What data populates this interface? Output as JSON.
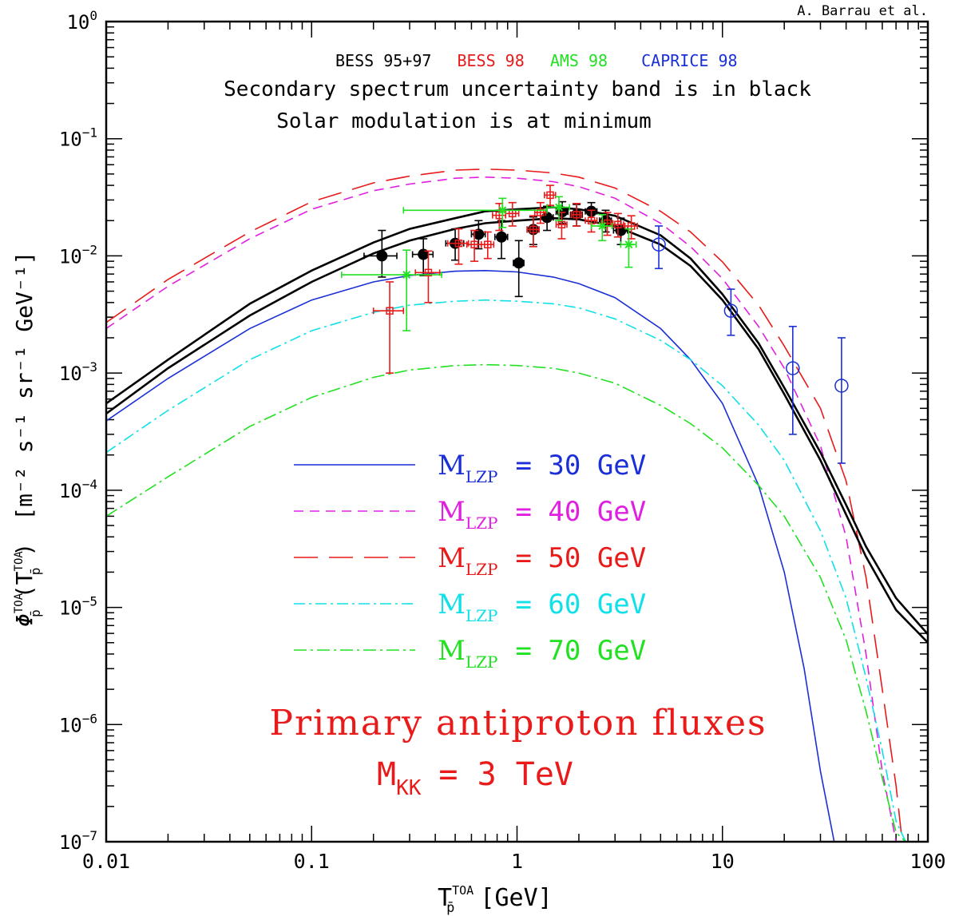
{
  "credit": "A. Barrau et al.",
  "colors": {
    "black": "#000000",
    "blue": "#1a2fd6",
    "magenta": "#e020e0",
    "red": "#e81a1a",
    "cyan": "#10e0e8",
    "green": "#22e022"
  },
  "chart_data": {
    "type": "line",
    "x_scale": "log",
    "y_scale": "log",
    "xlim": [
      0.01,
      100
    ],
    "ylim": [
      1e-07,
      1
    ],
    "x_ticks": [
      {
        "v": 0.01,
        "label": "0.01"
      },
      {
        "v": 0.1,
        "label": "0.1"
      },
      {
        "v": 1,
        "label": "1"
      },
      {
        "v": 10,
        "label": "10"
      },
      {
        "v": 100,
        "label": "100"
      }
    ],
    "y_ticks": [
      {
        "v": 1,
        "base": "10",
        "exp": "0"
      },
      {
        "v": 0.1,
        "base": "10",
        "exp": "−1"
      },
      {
        "v": 0.01,
        "base": "10",
        "exp": "−2"
      },
      {
        "v": 0.001,
        "base": "10",
        "exp": "−3"
      },
      {
        "v": 0.0001,
        "base": "10",
        "exp": "−4"
      },
      {
        "v": 1e-05,
        "base": "10",
        "exp": "−5"
      },
      {
        "v": 1e-06,
        "base": "10",
        "exp": "−6"
      },
      {
        "v": 1e-07,
        "base": "10",
        "exp": "−7"
      }
    ],
    "xlabel": {
      "main": "T",
      "sup": "TOA",
      "sub": "p̄",
      "unit": "[GeV]"
    },
    "ylabel": {
      "phi": "Φ",
      "sup": "TOA",
      "sub": "p̄",
      "arg": "(T",
      "argsup": "TOA",
      "argsub": "p̄",
      "close": ")",
      "unit": "[m⁻² s⁻¹ sr⁻¹ GeV⁻¹]"
    },
    "experiments": [
      {
        "name": "BESS 95+97",
        "color": "#000000"
      },
      {
        "name": "BESS 98",
        "color": "#e81a1a"
      },
      {
        "name": "AMS 98",
        "color": "#22e022"
      },
      {
        "name": "CAPRICE 98",
        "color": "#1a2fd6"
      }
    ],
    "annotation_line1": "Secondary spectrum uncertainty band is in black",
    "annotation_line2": "Solar modulation is at minimum",
    "big_title": "Primary antiproton fluxes",
    "mkk_main": "M",
    "mkk_sub": "KK",
    "mkk_value": "= 3 TeV",
    "series": [
      {
        "name": "M_LZP = 30 GeV",
        "label_main": "M",
        "label_sub": "LZP",
        "label_value": "= 30 GeV",
        "color": "#1a2fd6",
        "dash": "none",
        "x": [
          0.01,
          0.02,
          0.05,
          0.1,
          0.2,
          0.3,
          0.5,
          0.7,
          1,
          1.5,
          2,
          3,
          5,
          7,
          10,
          15,
          20,
          25,
          30,
          35
        ],
        "y": [
          0.00039,
          0.0009,
          0.0024,
          0.0042,
          0.006,
          0.0068,
          0.0074,
          0.0075,
          0.0073,
          0.0066,
          0.0058,
          0.0044,
          0.0024,
          0.0013,
          0.00055,
          0.00011,
          2e-05,
          3e-06,
          4e-07,
          1e-07
        ]
      },
      {
        "name": "M_LZP = 40 GeV",
        "label_main": "M",
        "label_sub": "LZP",
        "label_value": "= 40 GeV",
        "color": "#e020e0",
        "dash": "12 8",
        "x": [
          0.01,
          0.02,
          0.05,
          0.1,
          0.2,
          0.3,
          0.5,
          0.7,
          1,
          1.5,
          2,
          3,
          5,
          7,
          10,
          15,
          20,
          30,
          40,
          50,
          60,
          70
        ],
        "y": [
          0.0024,
          0.0055,
          0.014,
          0.025,
          0.036,
          0.041,
          0.046,
          0.047,
          0.046,
          0.043,
          0.039,
          0.031,
          0.019,
          0.012,
          0.0064,
          0.0025,
          0.0011,
          0.00024,
          4e-05,
          4e-06,
          4e-07,
          1e-07
        ]
      },
      {
        "name": "M_LZP = 50 GeV",
        "label_main": "M",
        "label_sub": "LZP",
        "label_value": "= 50 GeV",
        "color": "#e81a1a",
        "dash": "30 14",
        "x": [
          0.01,
          0.02,
          0.05,
          0.1,
          0.2,
          0.3,
          0.5,
          0.7,
          1,
          1.5,
          2,
          3,
          5,
          7,
          10,
          15,
          20,
          30,
          40,
          50,
          60,
          70,
          75
        ],
        "y": [
          0.0027,
          0.0063,
          0.016,
          0.029,
          0.042,
          0.048,
          0.054,
          0.055,
          0.054,
          0.051,
          0.047,
          0.038,
          0.024,
          0.016,
          0.0089,
          0.0038,
          0.0017,
          0.0005,
          0.00012,
          1.8e-05,
          2e-06,
          3e-07,
          1e-07
        ]
      },
      {
        "name": "M_LZP = 60 GeV",
        "label_main": "M",
        "label_sub": "LZP",
        "label_value": "= 60 GeV",
        "color": "#10e0e8",
        "dash": "14 5 3 5",
        "x": [
          0.01,
          0.02,
          0.05,
          0.1,
          0.2,
          0.3,
          0.5,
          0.7,
          1,
          1.5,
          2,
          3,
          5,
          7,
          10,
          15,
          20,
          30,
          40,
          50,
          60,
          70,
          78
        ],
        "y": [
          0.00021,
          0.00048,
          0.0013,
          0.0023,
          0.0033,
          0.0038,
          0.0041,
          0.0042,
          0.0041,
          0.0039,
          0.0036,
          0.0029,
          0.0019,
          0.0013,
          0.00078,
          0.00036,
          0.00018,
          4.5e-05,
          1.2e-05,
          2.5e-06,
          6e-07,
          1.5e-07,
          1e-07
        ]
      },
      {
        "name": "M_LZP = 70 GeV",
        "label_main": "M",
        "label_sub": "LZP",
        "label_value": "= 70 GeV",
        "color": "#22e022",
        "dash": "16 5 3 5",
        "x": [
          0.01,
          0.02,
          0.05,
          0.1,
          0.2,
          0.3,
          0.5,
          0.7,
          1,
          1.5,
          2,
          3,
          5,
          7,
          10,
          15,
          20,
          30,
          40,
          50,
          60,
          70,
          78
        ],
        "y": [
          6e-05,
          0.00013,
          0.00035,
          0.00062,
          0.00092,
          0.00106,
          0.00116,
          0.00118,
          0.00116,
          0.0011,
          0.001,
          0.00082,
          0.00053,
          0.00037,
          0.00023,
          0.00011,
          6e-05,
          1.8e-05,
          5.3e-06,
          1.3e-06,
          3.5e-07,
          1.2e-07,
          1e-07
        ]
      },
      {
        "name": "Secondary band upper",
        "color": "#000000",
        "dash": "none",
        "width": 2.6,
        "x": [
          0.01,
          0.02,
          0.05,
          0.1,
          0.2,
          0.3,
          0.5,
          0.7,
          1,
          1.5,
          2,
          3,
          5,
          7,
          10,
          15,
          20,
          30,
          40,
          50,
          70,
          100
        ],
        "y": [
          0.00055,
          0.0013,
          0.0039,
          0.0075,
          0.013,
          0.017,
          0.021,
          0.024,
          0.025,
          0.026,
          0.025,
          0.022,
          0.015,
          0.0095,
          0.0047,
          0.0018,
          0.00075,
          0.00021,
          7.5e-05,
          3.3e-05,
          1.2e-05,
          5.9e-06
        ]
      },
      {
        "name": "Secondary band lower",
        "color": "#000000",
        "dash": "none",
        "width": 2.6,
        "x": [
          0.01,
          0.02,
          0.05,
          0.1,
          0.2,
          0.3,
          0.5,
          0.7,
          1,
          1.5,
          2,
          3,
          5,
          7,
          10,
          15,
          20,
          30,
          40,
          50,
          70,
          100
        ],
        "y": [
          0.00045,
          0.0011,
          0.0031,
          0.006,
          0.0105,
          0.0135,
          0.017,
          0.019,
          0.02,
          0.021,
          0.0205,
          0.018,
          0.0125,
          0.0082,
          0.0042,
          0.0016,
          0.00066,
          0.00018,
          6.2e-05,
          2.7e-05,
          9.5e-06,
          5e-06
        ]
      }
    ],
    "points": [
      {
        "exp": "BESS 95+97",
        "marker": "filled-circle",
        "color": "#000000",
        "data": [
          {
            "x": 0.22,
            "y": 0.01,
            "xlo": 0.18,
            "xhi": 0.26,
            "ylo": 0.0066,
            "yhi": 0.0165
          },
          {
            "x": 0.35,
            "y": 0.0103,
            "xlo": 0.31,
            "xhi": 0.39,
            "ylo": 0.0068,
            "yhi": 0.014
          },
          {
            "x": 0.5,
            "y": 0.0128,
            "xlo": 0.45,
            "xhi": 0.55,
            "ylo": 0.0092,
            "yhi": 0.017
          },
          {
            "x": 0.65,
            "y": 0.0153,
            "xlo": 0.6,
            "xhi": 0.7,
            "ylo": 0.0115,
            "yhi": 0.02
          },
          {
            "x": 0.84,
            "y": 0.0145,
            "xlo": 0.78,
            "xhi": 0.9,
            "ylo": 0.0095,
            "yhi": 0.02
          },
          {
            "x": 1.02,
            "y": 0.0087,
            "xlo": 0.96,
            "xhi": 1.08,
            "ylo": 0.0045,
            "yhi": 0.0135
          },
          {
            "x": 1.2,
            "y": 0.0168,
            "xlo": 1.12,
            "xhi": 1.28,
            "ylo": 0.0125,
            "yhi": 0.0215
          },
          {
            "x": 1.4,
            "y": 0.0213,
            "xlo": 1.3,
            "xhi": 1.5,
            "ylo": 0.0165,
            "yhi": 0.0265
          },
          {
            "x": 1.66,
            "y": 0.0238,
            "xlo": 1.55,
            "xhi": 1.77,
            "ylo": 0.019,
            "yhi": 0.029
          },
          {
            "x": 1.95,
            "y": 0.0225,
            "xlo": 1.82,
            "xhi": 2.08,
            "ylo": 0.018,
            "yhi": 0.0275
          },
          {
            "x": 2.3,
            "y": 0.024,
            "xlo": 2.15,
            "xhi": 2.45,
            "ylo": 0.02,
            "yhi": 0.0285
          },
          {
            "x": 2.7,
            "y": 0.02,
            "xlo": 2.52,
            "xhi": 2.88,
            "ylo": 0.016,
            "yhi": 0.0245
          },
          {
            "x": 3.2,
            "y": 0.0165,
            "xlo": 2.95,
            "xhi": 3.45,
            "ylo": 0.0125,
            "yhi": 0.021
          }
        ]
      },
      {
        "exp": "BESS 98",
        "marker": "open-square",
        "color": "#e81a1a",
        "data": [
          {
            "x": 0.24,
            "y": 0.0034,
            "xlo": 0.2,
            "xhi": 0.28,
            "ylo": 0.001,
            "yhi": 0.006
          },
          {
            "x": 0.37,
            "y": 0.0072,
            "xlo": 0.32,
            "xhi": 0.42,
            "ylo": 0.004,
            "yhi": 0.011
          },
          {
            "x": 0.52,
            "y": 0.0128,
            "xlo": 0.46,
            "xhi": 0.58,
            "ylo": 0.0085,
            "yhi": 0.017
          },
          {
            "x": 0.62,
            "y": 0.0125,
            "xlo": 0.57,
            "xhi": 0.67,
            "ylo": 0.009,
            "yhi": 0.0165
          },
          {
            "x": 0.72,
            "y": 0.0125,
            "xlo": 0.67,
            "xhi": 0.77,
            "ylo": 0.0095,
            "yhi": 0.016
          },
          {
            "x": 0.82,
            "y": 0.0222,
            "xlo": 0.76,
            "xhi": 0.88,
            "ylo": 0.0165,
            "yhi": 0.028
          },
          {
            "x": 0.95,
            "y": 0.023,
            "xlo": 0.88,
            "xhi": 1.02,
            "ylo": 0.018,
            "yhi": 0.0285
          },
          {
            "x": 1.2,
            "y": 0.0168,
            "xlo": 1.12,
            "xhi": 1.28,
            "ylo": 0.012,
            "yhi": 0.022
          },
          {
            "x": 1.3,
            "y": 0.0235,
            "xlo": 1.22,
            "xhi": 1.38,
            "ylo": 0.019,
            "yhi": 0.0285
          },
          {
            "x": 1.45,
            "y": 0.033,
            "xlo": 1.36,
            "xhi": 1.54,
            "ylo": 0.027,
            "yhi": 0.04
          },
          {
            "x": 1.65,
            "y": 0.0185,
            "xlo": 1.55,
            "xhi": 1.75,
            "ylo": 0.014,
            "yhi": 0.0235
          },
          {
            "x": 1.95,
            "y": 0.0225,
            "xlo": 1.84,
            "xhi": 2.06,
            "ylo": 0.018,
            "yhi": 0.028
          },
          {
            "x": 2.3,
            "y": 0.02,
            "xlo": 2.15,
            "xhi": 2.45,
            "ylo": 0.016,
            "yhi": 0.0245
          },
          {
            "x": 2.75,
            "y": 0.019,
            "xlo": 2.57,
            "xhi": 2.93,
            "ylo": 0.015,
            "yhi": 0.0235
          },
          {
            "x": 3.1,
            "y": 0.0185,
            "xlo": 2.9,
            "xhi": 3.3,
            "ylo": 0.0145,
            "yhi": 0.023
          },
          {
            "x": 3.6,
            "y": 0.018,
            "xlo": 3.35,
            "xhi": 3.85,
            "ylo": 0.014,
            "yhi": 0.022
          }
        ]
      },
      {
        "exp": "AMS 98",
        "marker": "star",
        "color": "#22e022",
        "data": [
          {
            "x": 0.29,
            "y": 0.0069,
            "xlo": 0.14,
            "xhi": 0.43,
            "ylo": 0.0023,
            "yhi": 0.0112
          },
          {
            "x": 0.85,
            "y": 0.0245,
            "xlo": 0.28,
            "xhi": 1.4,
            "ylo": 0.0175,
            "yhi": 0.031
          },
          {
            "x": 1.6,
            "y": 0.026,
            "xlo": 1.4,
            "xhi": 1.8,
            "ylo": 0.02,
            "yhi": 0.032
          },
          {
            "x": 2.6,
            "y": 0.018,
            "xlo": 2.3,
            "xhi": 2.9,
            "ylo": 0.0135,
            "yhi": 0.0225
          },
          {
            "x": 3.5,
            "y": 0.0125,
            "xlo": 3.2,
            "xhi": 3.8,
            "ylo": 0.008,
            "yhi": 0.017
          }
        ]
      },
      {
        "exp": "CAPRICE 98",
        "marker": "open-circle",
        "color": "#1a2fd6",
        "data": [
          {
            "x": 4.9,
            "y": 0.0125,
            "xlo": 4.9,
            "xhi": 4.9,
            "ylo": 0.0078,
            "yhi": 0.018
          },
          {
            "x": 11.0,
            "y": 0.0034,
            "xlo": 11.0,
            "xhi": 11.0,
            "ylo": 0.0021,
            "yhi": 0.0052
          },
          {
            "x": 22.0,
            "y": 0.0011,
            "xlo": 22.0,
            "xhi": 22.0,
            "ylo": 0.0003,
            "yhi": 0.0025
          },
          {
            "x": 38.0,
            "y": 0.00078,
            "xlo": 38.0,
            "xhi": 38.0,
            "ylo": 0.00017,
            "yhi": 0.002
          }
        ]
      }
    ]
  }
}
